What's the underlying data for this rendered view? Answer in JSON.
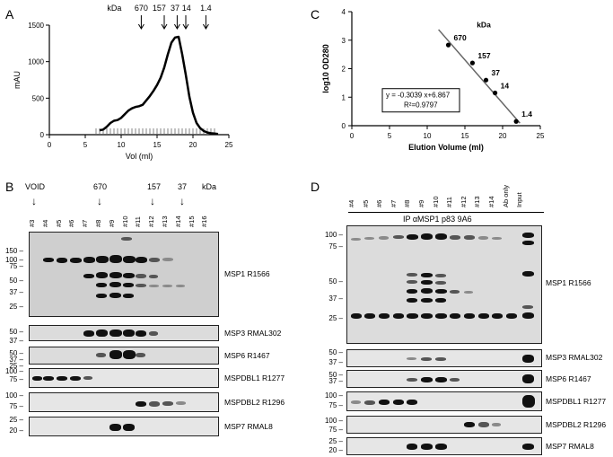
{
  "panels": {
    "A": "A",
    "B": "B",
    "C": "C",
    "D": "D"
  },
  "chart_data": [
    {
      "type": "line",
      "panel": "A",
      "xlabel": "Vol (ml)",
      "ylabel": "mAU",
      "xlim": [
        0,
        25
      ],
      "ylim": [
        0,
        1500
      ],
      "x_ticks": [
        "0",
        "5",
        "10",
        "15",
        "20",
        "25"
      ],
      "y_ticks": [
        "0",
        "500",
        "1000",
        "1500"
      ],
      "marker_header": "kDa",
      "markers": [
        {
          "label": "670",
          "x": 12.8
        },
        {
          "label": "157",
          "x": 16.0
        },
        {
          "label": "37",
          "x": 17.8
        },
        {
          "label": "14",
          "x": 19.0
        },
        {
          "label": "1.4",
          "x": 21.8
        }
      ],
      "x": [
        7,
        7.5,
        8,
        8.5,
        9,
        9.5,
        10,
        10.5,
        11,
        11.5,
        12,
        12.5,
        13,
        13.5,
        14,
        14.5,
        15,
        15.5,
        16,
        16.5,
        17,
        17.5,
        18,
        18.5,
        19,
        19.5,
        20,
        20.5,
        21,
        21.5,
        22,
        22.5,
        23,
        23.5
      ],
      "y": [
        60,
        70,
        110,
        160,
        190,
        200,
        230,
        280,
        330,
        360,
        380,
        390,
        410,
        470,
        530,
        600,
        680,
        780,
        920,
        1100,
        1260,
        1330,
        1340,
        1100,
        820,
        520,
        300,
        160,
        90,
        50,
        30,
        20,
        15,
        10
      ],
      "fraction_ticks_x": [
        6.5,
        7,
        7.5,
        8,
        8.5,
        9,
        9.5,
        10,
        10.5,
        11,
        11.5,
        12,
        12.5,
        13,
        13.5,
        14,
        14.5,
        15,
        15.5,
        16,
        16.5,
        17,
        17.5,
        18,
        18.5,
        19,
        19.5,
        20,
        20.5,
        21,
        21.5,
        22,
        22.5,
        23
      ]
    },
    {
      "type": "scatter",
      "panel": "C",
      "xlabel": "Elution Volume (ml)",
      "ylabel": "log10 OD280",
      "xlim": [
        0,
        25
      ],
      "ylim": [
        0,
        4
      ],
      "x_ticks": [
        "0",
        "5",
        "10",
        "15",
        "20",
        "25"
      ],
      "y_ticks": [
        "0",
        "1",
        "2",
        "3",
        "4"
      ],
      "legend_header": "kDa",
      "points": [
        {
          "label": "670",
          "x": 12.8,
          "y": 2.83
        },
        {
          "label": "157",
          "x": 16.0,
          "y": 2.2
        },
        {
          "label": "37",
          "x": 17.8,
          "y": 1.6
        },
        {
          "label": "14",
          "x": 19.0,
          "y": 1.15
        },
        {
          "label": "1.4",
          "x": 21.8,
          "y": 0.15
        }
      ],
      "fit": {
        "slope": -0.3039,
        "intercept": 6.867
      },
      "equation_line1": "y = -0.3039 x+6.867",
      "equation_line2": "R²=0.9797"
    }
  ],
  "panel_B": {
    "void_label": "VOID",
    "marker_labels": [
      "670",
      "157",
      "37"
    ],
    "kda_label": "kDa",
    "lanes": [
      "#3",
      "#4",
      "#5",
      "#6",
      "#7",
      "#8",
      "#9",
      "#10",
      "#11",
      "#12",
      "#13",
      "#14",
      "#15",
      "#16"
    ],
    "blots": [
      {
        "name": "MSP1 R1566",
        "mw": [
          "150",
          "100",
          "75",
          "50",
          "37",
          "25"
        ]
      },
      {
        "name": "MSP3 RMAL302",
        "mw": [
          "50",
          "37"
        ]
      },
      {
        "name": "MSP6 R1467",
        "mw": [
          "50",
          "37",
          "25"
        ]
      },
      {
        "name": "MSPDBL1 R1277",
        "mw": [
          "100",
          "75"
        ]
      },
      {
        "name": "MSPDBL2 R1296",
        "mw": [
          "100",
          "75"
        ]
      },
      {
        "name": "MSP7 RMAL8",
        "mw": [
          "25",
          "20"
        ]
      }
    ]
  },
  "panel_D": {
    "lanes": [
      "#4",
      "#5",
      "#6",
      "#7",
      "#8",
      "#9",
      "#10",
      "#11",
      "#12",
      "#13",
      "#14",
      "Ab only",
      "Input"
    ],
    "ip_label": "IP αMSP1 p83 9A6",
    "blots": [
      {
        "name": "MSP1 R1566",
        "mw": [
          "100",
          "75",
          "50",
          "37",
          "25"
        ]
      },
      {
        "name": "MSP3 RMAL302",
        "mw": [
          "50",
          "37"
        ]
      },
      {
        "name": "MSP6 R1467",
        "mw": [
          "50",
          "37"
        ]
      },
      {
        "name": "MSPDBL1 R1277",
        "mw": [
          "100",
          "75"
        ]
      },
      {
        "name": "MSPDBL2 R1296",
        "mw": [
          "100",
          "75"
        ]
      },
      {
        "name": "MSP7 RMAL8",
        "mw": [
          "25",
          "20"
        ]
      }
    ]
  }
}
